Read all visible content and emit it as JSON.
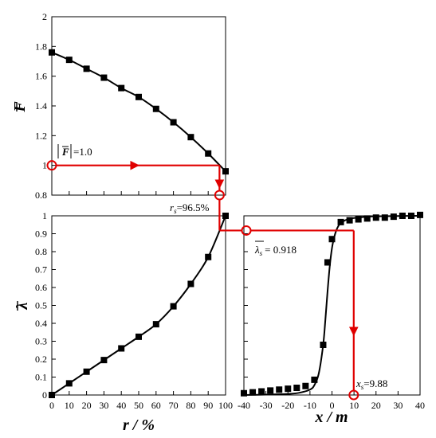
{
  "colors": {
    "data": "#000000",
    "highlight": "#e00000",
    "frame": "#000000"
  },
  "chart_data": [
    {
      "type": "scatter",
      "panel": "F-bar vs r",
      "ylabel_symbol": "F",
      "xlim": [
        0,
        100
      ],
      "ylim": [
        0.8,
        2.0
      ],
      "yticks": [
        "0.8",
        "1",
        "1.2",
        "1.4",
        "1.6",
        "1.8",
        "2"
      ],
      "series": [
        {
          "style": "square markers with fitted line",
          "x": [
            0,
            10,
            20,
            30,
            40,
            50,
            60,
            70,
            80,
            90,
            100
          ],
          "y": [
            1.76,
            1.71,
            1.65,
            1.59,
            1.52,
            1.46,
            1.38,
            1.29,
            1.19,
            1.08,
            0.96
          ]
        }
      ],
      "annotation": {
        "text_symbol": "F",
        "text_value": "=1.0",
        "x": 0,
        "y": 1.0
      }
    },
    {
      "type": "scatter",
      "panel": "lambda-bar vs r",
      "xlabel": "r / %",
      "ylabel_symbol": "λ",
      "xlim": [
        0,
        100
      ],
      "ylim": [
        0,
        1
      ],
      "xticks": [
        "0",
        "10",
        "20",
        "30",
        "40",
        "50",
        "60",
        "70",
        "80",
        "90",
        "100"
      ],
      "yticks": [
        "0",
        "0.1",
        "0.2",
        "0.3",
        "0.4",
        "0.5",
        "0.6",
        "0.7",
        "0.8",
        "0.9",
        "1"
      ],
      "series": [
        {
          "style": "square markers with fitted line",
          "x": [
            0,
            10,
            20,
            30,
            40,
            50,
            60,
            70,
            80,
            90,
            100
          ],
          "y": [
            0.0,
            0.065,
            0.13,
            0.195,
            0.26,
            0.325,
            0.395,
            0.495,
            0.62,
            0.77,
            1.0
          ]
        }
      ],
      "annotation": {
        "text": "rs=96.5%",
        "sym": "r",
        "sub": "s",
        "value": "=96.5%",
        "x": 96.5
      }
    },
    {
      "type": "scatter",
      "panel": "lambda-bar vs x",
      "xlabel": "x / m",
      "xlim": [
        -40,
        40
      ],
      "ylim": [
        0,
        1
      ],
      "xticks": [
        "-40",
        "-30",
        "-20",
        "-10",
        "0",
        "10",
        "20",
        "30",
        "40"
      ],
      "series": [
        {
          "style": "square markers",
          "x": [
            -40,
            -36,
            -32,
            -28,
            -24,
            -20,
            -16,
            -12,
            -8,
            -4,
            -2,
            0,
            4,
            8,
            12,
            16,
            20,
            24,
            28,
            32,
            36,
            40
          ],
          "y": [
            0.01,
            0.015,
            0.02,
            0.025,
            0.03,
            0.035,
            0.04,
            0.05,
            0.085,
            0.28,
            0.74,
            0.87,
            0.965,
            0.975,
            0.98,
            0.985,
            0.99,
            0.99,
            0.995,
            1.0,
            1.0,
            1.005
          ]
        },
        {
          "style": "fitted sigmoid line",
          "x": [
            -40,
            -30,
            -20,
            -15,
            -10,
            -8,
            -6,
            -4,
            -3,
            -2,
            -1,
            0,
            1,
            2,
            3,
            4,
            6,
            8,
            10,
            15,
            20,
            30,
            40
          ],
          "y": [
            0.0,
            0.002,
            0.006,
            0.012,
            0.03,
            0.055,
            0.12,
            0.28,
            0.42,
            0.58,
            0.72,
            0.82,
            0.88,
            0.92,
            0.945,
            0.96,
            0.975,
            0.983,
            0.988,
            0.994,
            0.997,
            0.999,
            1.0
          ]
        }
      ],
      "annotations": [
        {
          "sym": "λ",
          "sub": "s",
          "value": "= 0.918",
          "y": 0.918
        },
        {
          "sym": "x",
          "sub": "s",
          "value": "=9.88",
          "x": 9.88
        }
      ]
    }
  ]
}
